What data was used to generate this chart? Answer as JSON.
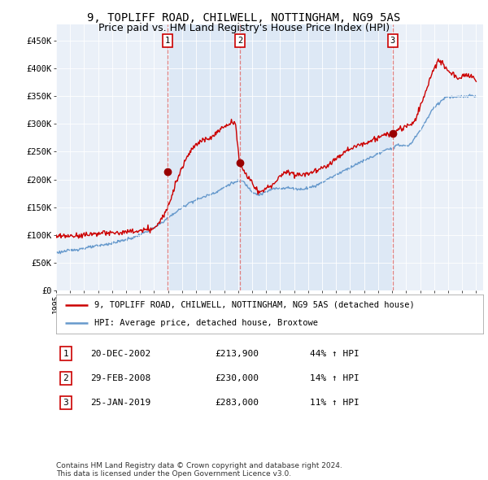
{
  "title": "9, TOPLIFF ROAD, CHILWELL, NOTTINGHAM, NG9 5AS",
  "subtitle": "Price paid vs. HM Land Registry's House Price Index (HPI)",
  "title_fontsize": 10,
  "subtitle_fontsize": 9,
  "ylabel_ticks": [
    "£0",
    "£50K",
    "£100K",
    "£150K",
    "£200K",
    "£250K",
    "£300K",
    "£350K",
    "£400K",
    "£450K"
  ],
  "ytick_values": [
    0,
    50000,
    100000,
    150000,
    200000,
    250000,
    300000,
    350000,
    400000,
    450000
  ],
  "ylim": [
    0,
    480000
  ],
  "xlim_start": 1995.0,
  "xlim_end": 2025.5,
  "sale_prices": [
    213900,
    230000,
    283000
  ],
  "sale_numbers": [
    "1",
    "2",
    "3"
  ],
  "vline_color": "#e08080",
  "sale_marker_color": "#990000",
  "hpi_line_color": "#6699cc",
  "price_line_color": "#cc0000",
  "shaded_color": "#dde8f5",
  "background_color": "#ffffff",
  "plot_bg_color": "#eaf0f8",
  "grid_color": "#ffffff",
  "legend_label_price": "9, TOPLIFF ROAD, CHILWELL, NOTTINGHAM, NG9 5AS (detached house)",
  "legend_label_hpi": "HPI: Average price, detached house, Broxtowe",
  "table_rows": [
    [
      "1",
      "20-DEC-2002",
      "£213,900",
      "44% ↑ HPI"
    ],
    [
      "2",
      "29-FEB-2008",
      "£230,000",
      "14% ↑ HPI"
    ],
    [
      "3",
      "25-JAN-2019",
      "£283,000",
      "11% ↑ HPI"
    ]
  ],
  "footnote": "Contains HM Land Registry data © Crown copyright and database right 2024.\nThis data is licensed under the Open Government Licence v3.0."
}
